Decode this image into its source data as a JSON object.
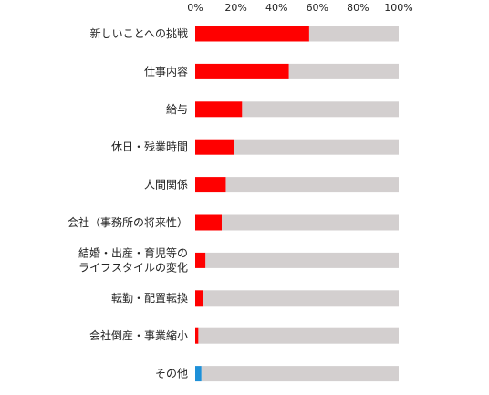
{
  "chart_data": {
    "type": "bar",
    "orientation": "horizontal",
    "stacked_to_100": true,
    "categories": [
      [
        "新しいことへの挑戦"
      ],
      [
        "仕事内容"
      ],
      [
        "給与"
      ],
      [
        "休日・残業時間"
      ],
      [
        "人間関係"
      ],
      [
        "会社（事務所の将来性）"
      ],
      [
        "結婚・出産・育児等の",
        "ライフスタイルの変化"
      ],
      [
        "転勤・配置転換"
      ],
      [
        "会社倒産・事業縮小"
      ],
      [
        "その他"
      ]
    ],
    "values": [
      56,
      46,
      23,
      19,
      15,
      13,
      5,
      4,
      1.5,
      3
    ],
    "remainder_values": [
      44,
      54,
      77,
      81,
      85,
      87,
      95,
      96,
      98.5,
      97
    ],
    "xlim": [
      0,
      100
    ],
    "x_ticks": [
      "0%",
      "20%",
      "40%",
      "60%",
      "80%",
      "100%"
    ],
    "tick_position": "top",
    "grid": false,
    "legend": "none",
    "colors": {
      "value": "#ff0000",
      "other_value": "#1e90d8",
      "remainder": "#d3cfcf"
    }
  }
}
